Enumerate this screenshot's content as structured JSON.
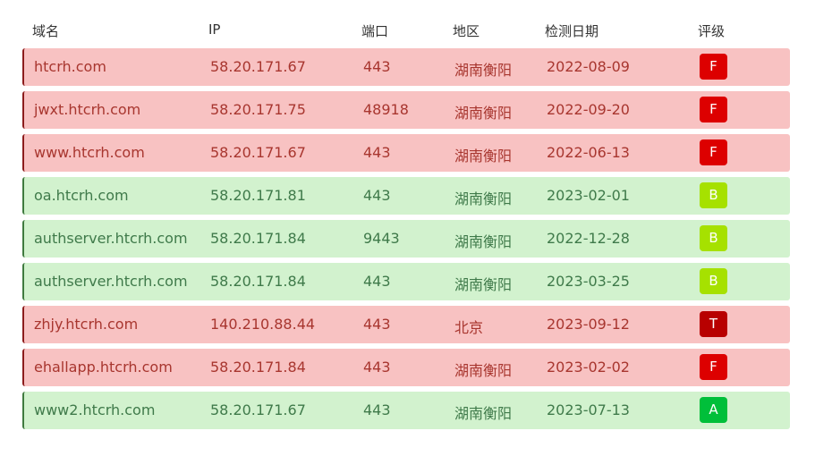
{
  "table": {
    "headers": {
      "domain": "域名",
      "ip": "IP",
      "port": "端口",
      "region": "地区",
      "date": "检测日期",
      "grade": "评级"
    },
    "rows": [
      {
        "domain": "htcrh.com",
        "ip": "58.20.171.67",
        "port": "443",
        "region": "湖南衡阳",
        "date": "2022-08-09",
        "grade": "F",
        "status": "bad",
        "grade_color": "#dd0000"
      },
      {
        "domain": "jwxt.htcrh.com",
        "ip": "58.20.171.75",
        "port": "48918",
        "region": "湖南衡阳",
        "date": "2022-09-20",
        "grade": "F",
        "status": "bad",
        "grade_color": "#dd0000"
      },
      {
        "domain": "www.htcrh.com",
        "ip": "58.20.171.67",
        "port": "443",
        "region": "湖南衡阳",
        "date": "2022-06-13",
        "grade": "F",
        "status": "bad",
        "grade_color": "#dd0000"
      },
      {
        "domain": "oa.htcrh.com",
        "ip": "58.20.171.81",
        "port": "443",
        "region": "湖南衡阳",
        "date": "2023-02-01",
        "grade": "B",
        "status": "good",
        "grade_color": "#a6e100"
      },
      {
        "domain": "authserver.htcrh.com",
        "ip": "58.20.171.84",
        "port": "9443",
        "region": "湖南衡阳",
        "date": "2022-12-28",
        "grade": "B",
        "status": "good",
        "grade_color": "#a6e100"
      },
      {
        "domain": "authserver.htcrh.com",
        "ip": "58.20.171.84",
        "port": "443",
        "region": "湖南衡阳",
        "date": "2023-03-25",
        "grade": "B",
        "status": "good",
        "grade_color": "#a6e100"
      },
      {
        "domain": "zhjy.htcrh.com",
        "ip": "140.210.88.44",
        "port": "443",
        "region": "北京",
        "date": "2023-09-12",
        "grade": "T",
        "status": "bad",
        "grade_color": "#b80000"
      },
      {
        "domain": "ehallapp.htcrh.com",
        "ip": "58.20.171.84",
        "port": "443",
        "region": "湖南衡阳",
        "date": "2023-02-02",
        "grade": "F",
        "status": "bad",
        "grade_color": "#dd0000"
      },
      {
        "domain": "www2.htcrh.com",
        "ip": "58.20.171.67",
        "port": "443",
        "region": "湖南衡阳",
        "date": "2023-07-13",
        "grade": "A",
        "status": "good",
        "grade_color": "#00bf3a"
      }
    ]
  }
}
